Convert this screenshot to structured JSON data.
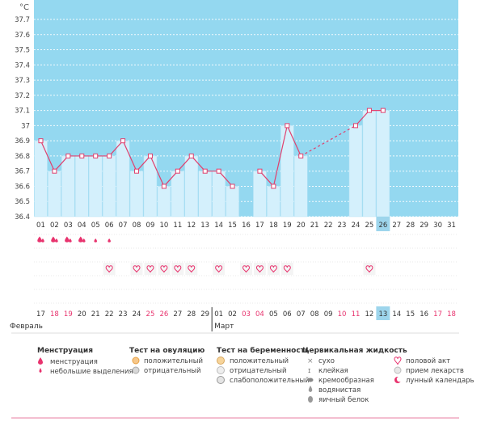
{
  "chart_data": {
    "type": "line",
    "ylabel": "°C",
    "ylim": [
      36.4,
      37.7
    ],
    "yticks": [
      "37.7",
      "37.6",
      "37.5",
      "37.4",
      "37.3",
      "37.2",
      "37.1",
      "37",
      "36.9",
      "36.8",
      "36.7",
      "36.6",
      "36.5",
      "36.4"
    ],
    "cycle_days": [
      "01",
      "02",
      "03",
      "04",
      "05",
      "06",
      "07",
      "08",
      "09",
      "10",
      "11",
      "12",
      "13",
      "14",
      "15",
      "16",
      "17",
      "18",
      "19",
      "20",
      "21",
      "22",
      "23",
      "24",
      "25",
      "26",
      "27",
      "28",
      "29",
      "30",
      "31"
    ],
    "current_day": "26",
    "temperatures": [
      36.9,
      36.7,
      36.8,
      36.8,
      36.8,
      36.8,
      36.9,
      36.7,
      36.8,
      36.6,
      36.7,
      36.8,
      36.7,
      36.7,
      36.6,
      null,
      36.7,
      36.6,
      37.0,
      36.8,
      null,
      null,
      null,
      37.0,
      37.1,
      37.1,
      null,
      null,
      null,
      null,
      null
    ],
    "dashed_segments": [
      [
        20,
        24
      ]
    ],
    "menstruation_days": [
      "01",
      "02",
      "03",
      "04"
    ],
    "light_bleeding_days": [
      "05",
      "06"
    ],
    "intercourse_days": [
      "06",
      "08",
      "09",
      "10",
      "11",
      "12",
      "14",
      "16",
      "17",
      "18",
      "19",
      "25"
    ],
    "calendar_dates": [
      "17",
      "18",
      "19",
      "20",
      "21",
      "22",
      "23",
      "24",
      "25",
      "26",
      "27",
      "28",
      "29",
      "01",
      "02",
      "03",
      "04",
      "05",
      "06",
      "07",
      "08",
      "09",
      "10",
      "11",
      "12",
      "13",
      "14",
      "15",
      "16",
      "17",
      "18"
    ],
    "red_dates_idx": [
      1,
      2,
      8,
      9,
      15,
      16,
      22,
      23,
      29,
      30
    ],
    "today_index": 25,
    "month_labels": [
      {
        "text": "Февраль",
        "start_index": 0
      },
      {
        "text": "Март",
        "start_index": 13
      }
    ],
    "colors": {
      "high_band": "#94d8f0",
      "bar": "#d4f0fc",
      "bar_edge": "#b8e4f6",
      "line": "#e0406e",
      "accent": "#e8336e",
      "today": "#9dd5ec"
    }
  },
  "legend": {
    "menstruation": {
      "title": "Менструация",
      "items": [
        "менструация",
        "небольшие выделения"
      ]
    },
    "ovulation_test": {
      "title": "Тест на овуляцию",
      "items": [
        "положительный",
        "отрицательный"
      ]
    },
    "pregnancy_test": {
      "title": "Тест на беременность",
      "items": [
        "положительный",
        "отрицательный",
        "слабоположительный"
      ]
    },
    "cervical_fluid": {
      "title": "Цервикальная жидкость",
      "items": [
        "сухо",
        "клейкая",
        "кремообразная",
        "водянистая",
        "яичный белок"
      ]
    },
    "other": {
      "items": [
        "половой акт",
        "прием лекарств",
        "лунный календарь"
      ]
    }
  }
}
